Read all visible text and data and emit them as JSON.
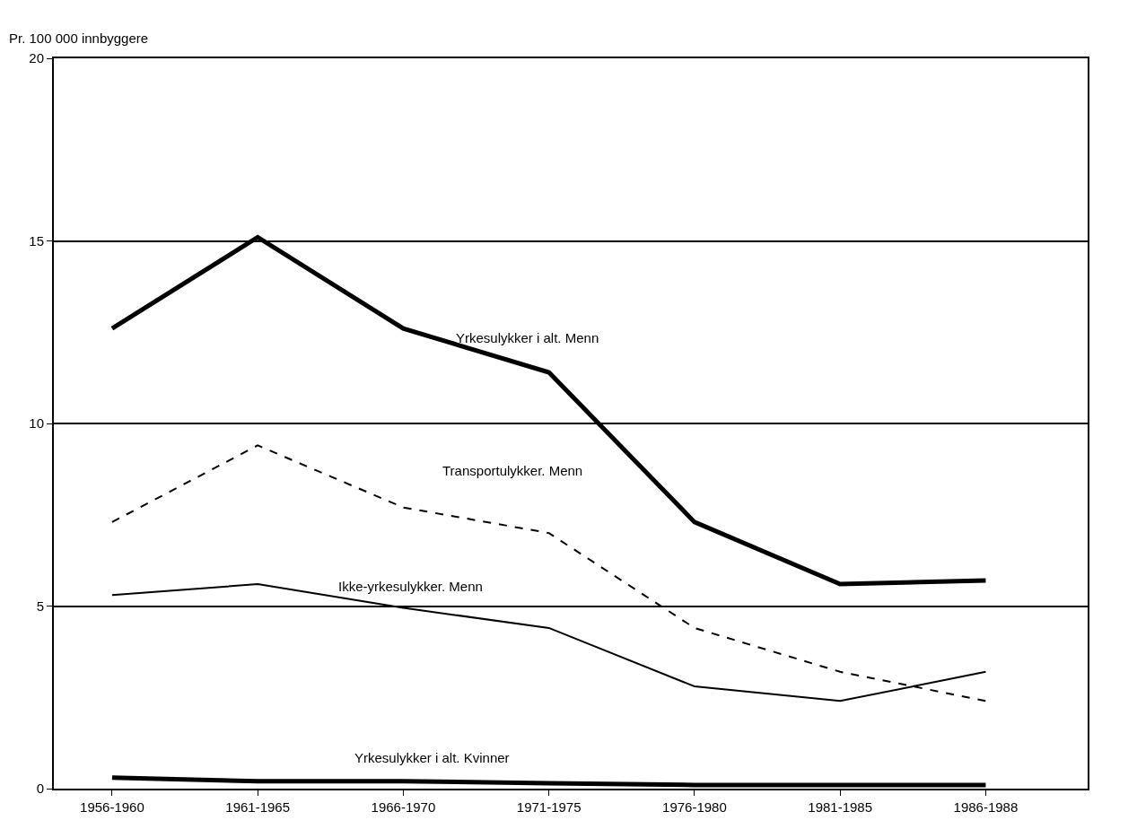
{
  "chart_data": {
    "type": "line",
    "ylabel": "Pr. 100 000 innbyggere",
    "categories": [
      "1956-1960",
      "1961-1965",
      "1966-1970",
      "1971-1975",
      "1976-1980",
      "1981-1985",
      "1986-1988"
    ],
    "series": [
      {
        "name": "Yrkesulykker i alt. Menn",
        "color": "#000000",
        "line_style": "solid",
        "values": [
          12.6,
          15.1,
          12.6,
          11.4,
          7.3,
          5.6,
          5.7
        ]
      },
      {
        "name": "Transportulykker. Menn",
        "color": "#000000",
        "line_style": "dashed",
        "values": [
          7.3,
          9.4,
          7.7,
          7.0,
          4.4,
          3.2,
          2.4
        ]
      },
      {
        "name": "Ikke-yrkesulykker. Menn",
        "color": "#000000",
        "line_style": "solid",
        "values": [
          5.3,
          5.6,
          4.95,
          4.4,
          2.8,
          2.4,
          3.2
        ]
      },
      {
        "name": "Yrkesulykker i alt. Kvinner",
        "color": "#000000",
        "line_style": "solid",
        "values": [
          0.3,
          0.2,
          0.2,
          0.15,
          0.1,
          0.1,
          0.1
        ]
      }
    ],
    "ylim": [
      0,
      20
    ],
    "yticks": [
      0,
      5,
      10,
      15,
      20
    ],
    "grid": "y",
    "legend": false,
    "marker": "none"
  }
}
